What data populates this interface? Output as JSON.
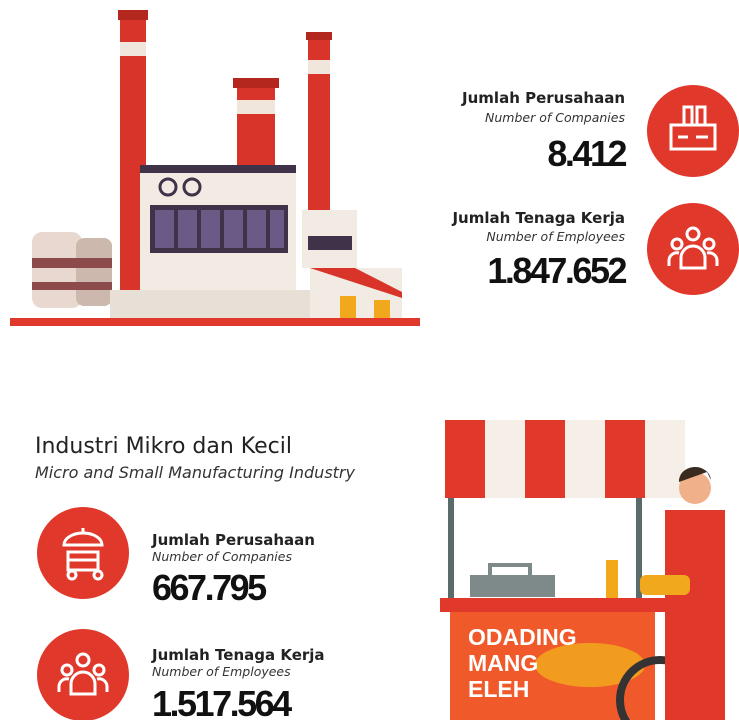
{
  "large_medium": {
    "stats": [
      {
        "label": "Jumlah Perusahaan",
        "sublabel": "Number of Companies",
        "value": "8.412"
      },
      {
        "label": "Jumlah Tenaga Kerja",
        "sublabel": "Number of Employees",
        "value": "1.847.652"
      }
    ]
  },
  "micro_small": {
    "title": "Industri Mikro dan Kecil",
    "subtitle": "Micro and Small Manufacturing Industry",
    "stats": [
      {
        "label": "Jumlah Perusahaan",
        "sublabel": "Number of Companies",
        "value": "667.795"
      },
      {
        "label": "Jumlah Tenaga Kerja",
        "sublabel": "Number of Employees",
        "value": "1.517.564"
      }
    ]
  },
  "cart_sign": [
    "ODADING",
    "MANG",
    "ELEH"
  ]
}
